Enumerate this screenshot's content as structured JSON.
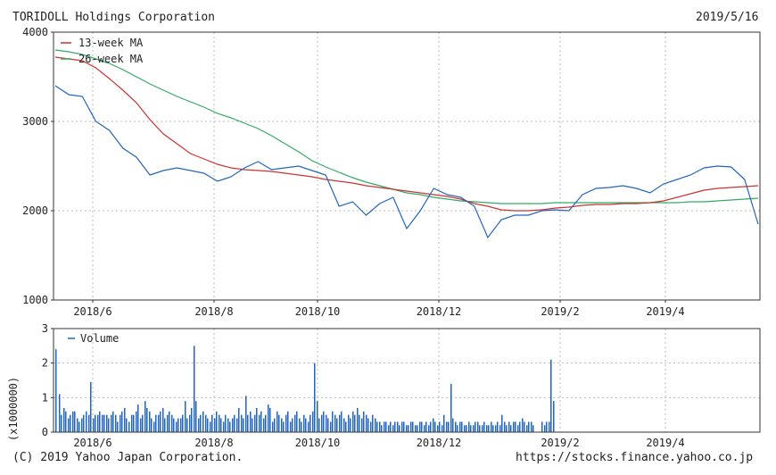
{
  "header": {
    "company": "TORIDOLL Holdings Corporation",
    "date": "2019/5/16"
  },
  "footer": {
    "copyright": "(C) 2019 Yahoo Japan Corporation.",
    "url": "https://stocks.finance.yahoo.co.jp"
  },
  "colors": {
    "price": "#2266bb",
    "ma13": "#cc3333",
    "ma26": "#33aa66",
    "volume": "#2266bb",
    "grid": "#bbbbbb",
    "frame": "#333333"
  },
  "chart_data": [
    {
      "type": "line",
      "xlabel": "",
      "ylabel": "",
      "x_tick_labels": [
        "2018/6",
        "2018/8",
        "2018/10",
        "2018/12",
        "2019/2",
        "2019/4"
      ],
      "y_ticks": [
        1000,
        2000,
        3000,
        4000
      ],
      "ylim": [
        1000,
        4000
      ],
      "grid": true,
      "legend_position": "top-left",
      "x_dates": [
        "2018/5/14",
        "2018/5/21",
        "2018/5/28",
        "2018/6/4",
        "2018/6/11",
        "2018/6/18",
        "2018/6/25",
        "2018/7/2",
        "2018/7/9",
        "2018/7/16",
        "2018/7/23",
        "2018/7/30",
        "2018/8/6",
        "2018/8/13",
        "2018/8/20",
        "2018/8/27",
        "2018/9/3",
        "2018/9/10",
        "2018/9/17",
        "2018/9/24",
        "2018/10/1",
        "2018/10/8",
        "2018/10/15",
        "2018/10/22",
        "2018/10/29",
        "2018/11/5",
        "2018/11/12",
        "2018/11/19",
        "2018/11/26",
        "2018/12/3",
        "2018/12/10",
        "2018/12/17",
        "2018/12/24",
        "2018/12/31",
        "2019/1/7",
        "2019/1/14",
        "2019/1/21",
        "2019/1/28",
        "2019/2/4",
        "2019/2/11",
        "2019/2/18",
        "2019/2/25",
        "2019/3/4",
        "2019/3/11",
        "2019/3/18",
        "2019/3/25",
        "2019/4/1",
        "2019/4/8",
        "2019/4/15",
        "2019/4/22",
        "2019/5/6",
        "2019/5/13",
        "2019/5/16"
      ],
      "series": [
        {
          "name": "",
          "values": [
            3400,
            3300,
            3280,
            3000,
            2900,
            2700,
            2600,
            2400,
            2450,
            2480,
            2450,
            2420,
            2330,
            2380,
            2480,
            2550,
            2460,
            2480,
            2500,
            2450,
            2400,
            2050,
            2100,
            1950,
            2080,
            2150,
            1800,
            2000,
            2250,
            2180,
            2150,
            2050,
            1700,
            1900,
            1950,
            1950,
            2000,
            2010,
            2000,
            2180,
            2250,
            2260,
            2280,
            2250,
            2200,
            2300,
            2350,
            2400,
            2480,
            2500,
            2490,
            2350,
            1850
          ]
        },
        {
          "name": "13-week MA",
          "values": [
            3720,
            3700,
            3680,
            3600,
            3480,
            3350,
            3210,
            3020,
            2860,
            2750,
            2640,
            2580,
            2520,
            2480,
            2460,
            2450,
            2440,
            2420,
            2400,
            2380,
            2350,
            2330,
            2310,
            2280,
            2260,
            2240,
            2220,
            2200,
            2180,
            2160,
            2130,
            2080,
            2050,
            2010,
            2000,
            2000,
            2010,
            2030,
            2040,
            2060,
            2070,
            2070,
            2080,
            2080,
            2090,
            2110,
            2150,
            2190,
            2230,
            2250,
            2260,
            2270,
            2280
          ]
        },
        {
          "name": "26-week MA",
          "values": [
            3800,
            3780,
            3750,
            3700,
            3650,
            3580,
            3500,
            3420,
            3350,
            3280,
            3220,
            3160,
            3090,
            3040,
            2980,
            2920,
            2840,
            2750,
            2660,
            2560,
            2490,
            2430,
            2370,
            2320,
            2280,
            2240,
            2200,
            2180,
            2150,
            2130,
            2110,
            2100,
            2090,
            2080,
            2080,
            2080,
            2080,
            2090,
            2090,
            2090,
            2090,
            2090,
            2090,
            2090,
            2090,
            2090,
            2090,
            2100,
            2100,
            2110,
            2120,
            2130,
            2140
          ]
        }
      ]
    },
    {
      "type": "bar",
      "ylabel": "(x1000000)",
      "legend_position": "top-left",
      "y_ticks": [
        0,
        1,
        2,
        3
      ],
      "ylim": [
        0,
        3
      ],
      "x_tick_labels": [
        "2018/6",
        "2018/8",
        "2018/10",
        "2018/12",
        "2019/2",
        "2019/4"
      ],
      "grid": true,
      "series": [
        {
          "name": "Volume",
          "values": [
            2.4,
            1.1,
            0.5,
            0.7,
            0.6,
            0.4,
            0.5,
            0.6,
            0.6,
            0.4,
            0.3,
            0.4,
            0.5,
            0.6,
            0.5,
            1.45,
            0.4,
            0.5,
            0.5,
            0.6,
            0.5,
            0.5,
            0.5,
            0.4,
            0.5,
            0.6,
            0.5,
            0.3,
            0.5,
            0.6,
            0.7,
            0.4,
            0.3,
            0.5,
            0.5,
            0.6,
            0.8,
            0.4,
            0.5,
            0.9,
            0.7,
            0.6,
            0.4,
            0.3,
            0.5,
            0.5,
            0.6,
            0.7,
            0.4,
            0.5,
            0.6,
            0.5,
            0.4,
            0.3,
            0.4,
            0.4,
            0.5,
            0.9,
            0.4,
            0.5,
            0.7,
            2.5,
            0.9,
            0.4,
            0.5,
            0.6,
            0.5,
            0.4,
            0.3,
            0.5,
            0.4,
            0.6,
            0.5,
            0.4,
            0.3,
            0.5,
            0.4,
            0.3,
            0.4,
            0.5,
            0.4,
            0.7,
            0.5,
            0.4,
            1.05,
            0.5,
            0.6,
            0.4,
            0.5,
            0.7,
            0.5,
            0.6,
            0.4,
            0.5,
            0.8,
            0.7,
            0.3,
            0.4,
            0.6,
            0.5,
            0.4,
            0.3,
            0.5,
            0.6,
            0.3,
            0.4,
            0.5,
            0.6,
            0.4,
            0.3,
            0.5,
            0.4,
            0.3,
            0.5,
            0.6,
            2.0,
            0.9,
            0.4,
            0.5,
            0.6,
            0.5,
            0.4,
            0.3,
            0.6,
            0.5,
            0.4,
            0.5,
            0.6,
            0.4,
            0.3,
            0.5,
            0.4,
            0.6,
            0.5,
            0.7,
            0.5,
            0.4,
            0.6,
            0.5,
            0.4,
            0.3,
            0.5,
            0.4,
            0.3,
            0.3,
            0.2,
            0.3,
            0.3,
            0.2,
            0.3,
            0.2,
            0.3,
            0.3,
            0.2,
            0.3,
            0.3,
            0.2,
            0.2,
            0.3,
            0.3,
            0.2,
            0.2,
            0.3,
            0.3,
            0.2,
            0.3,
            0.2,
            0.3,
            0.4,
            0.3,
            0.2,
            0.3,
            0.2,
            0.5,
            0.3,
            0.3,
            1.4,
            0.4,
            0.3,
            0.2,
            0.3,
            0.3,
            0.2,
            0.2,
            0.3,
            0.2,
            0.2,
            0.3,
            0.3,
            0.2,
            0.2,
            0.3,
            0.2,
            0.2,
            0.3,
            0.2,
            0.2,
            0.3,
            0.2,
            0.5,
            0.3,
            0.2,
            0.3,
            0.2,
            0.3,
            0.3,
            0.2,
            0.3,
            0.4,
            0.3,
            0.2,
            0.3,
            0.3,
            0.2,
            0.0,
            0.0,
            0.0,
            0.3,
            0.2,
            0.3,
            0.3,
            2.1,
            0.9
          ]
        }
      ]
    }
  ],
  "legend": {
    "price_legend": "",
    "ma13": "13-week MA",
    "ma26": "26-week MA",
    "volume": "Volume"
  }
}
